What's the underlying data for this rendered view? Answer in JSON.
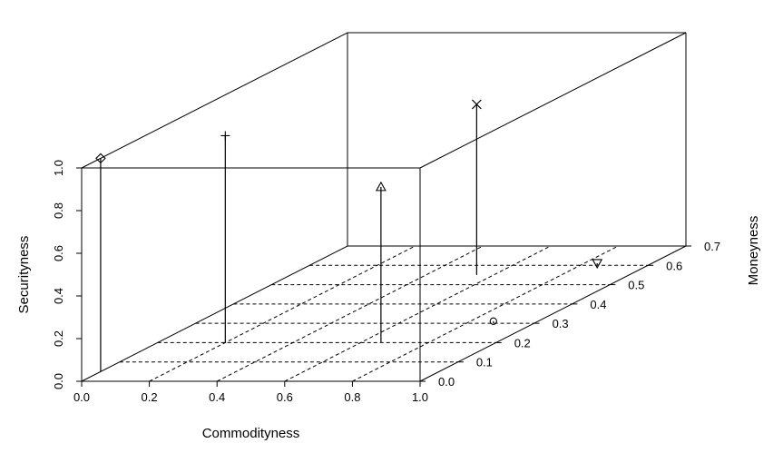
{
  "chart_data": {
    "type": "scatter3d",
    "xlabel": "Commodityness",
    "ylabel": "Moneyness",
    "zlabel": "Securityness",
    "xlim": [
      0.0,
      1.0
    ],
    "ylim": [
      0.0,
      0.7
    ],
    "zlim": [
      0.0,
      1.0
    ],
    "xticks": [
      "0.0",
      "0.2",
      "0.4",
      "0.6",
      "0.8",
      "1.0"
    ],
    "yticks": [
      "0.0",
      "0.1",
      "0.2",
      "0.3",
      "0.4",
      "0.5",
      "0.6",
      "0.7"
    ],
    "zticks": [
      "0.0",
      "0.2",
      "0.4",
      "0.6",
      "0.8",
      "1.0"
    ],
    "grid": true,
    "points": [
      {
        "marker": "diamond",
        "x": 0.0,
        "y": 0.05,
        "z": 1.0
      },
      {
        "marker": "plus",
        "x": 0.2,
        "y": 0.2,
        "z": 0.97
      },
      {
        "marker": "triangle-up",
        "x": 0.66,
        "y": 0.2,
        "z": 0.73
      },
      {
        "marker": "cross",
        "x": 0.55,
        "y": 0.55,
        "z": 0.8
      },
      {
        "marker": "circle",
        "x": 0.88,
        "y": 0.3,
        "z": 0.01
      },
      {
        "marker": "triangle-down",
        "x": 0.85,
        "y": 0.6,
        "z": 0.01
      }
    ]
  }
}
